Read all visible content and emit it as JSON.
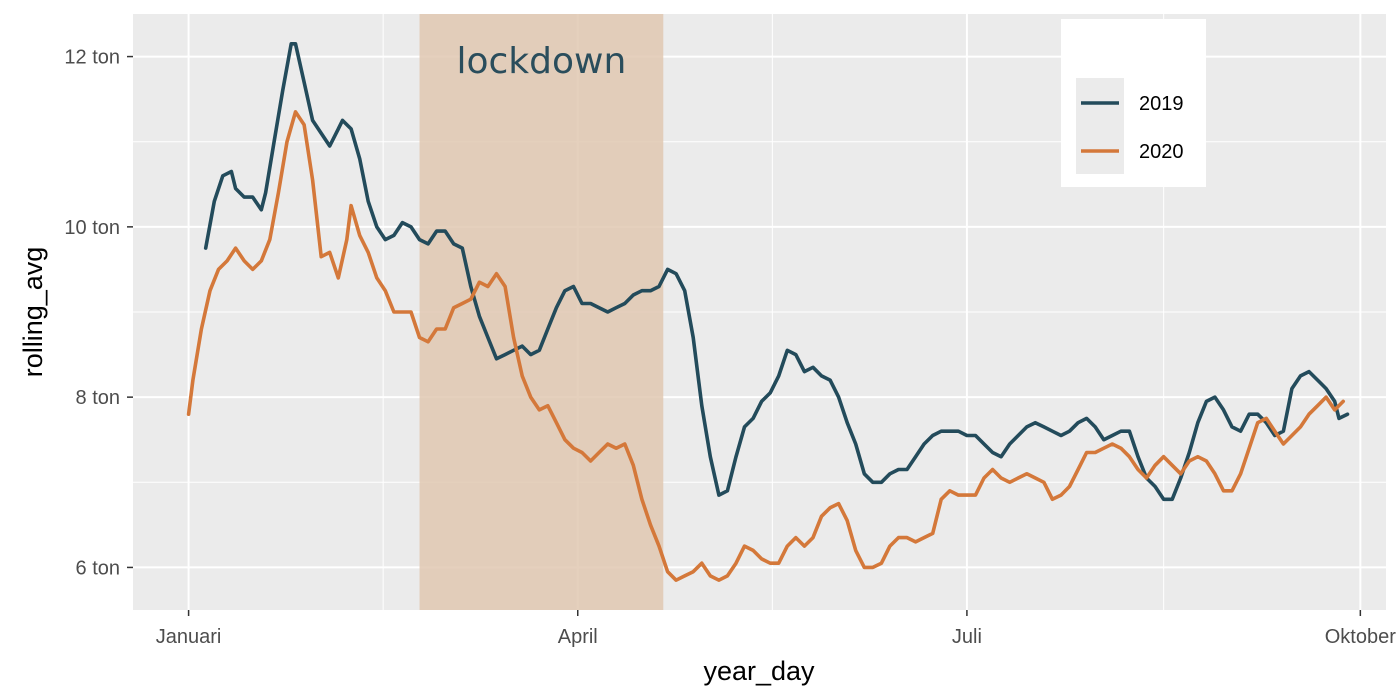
{
  "chart_data": {
    "type": "line",
    "xlabel": "year_day",
    "ylabel": "rolling_avg",
    "x_ticks": [
      {
        "label": "Januari",
        "date": "2020-01-01"
      },
      {
        "label": "April",
        "date": "2020-04-01"
      },
      {
        "label": "Juli",
        "date": "2020-07-01"
      },
      {
        "label": "Oktober",
        "date": "2020-10-01"
      }
    ],
    "y_ticks": [
      {
        "label": "6 ton",
        "value": 6
      },
      {
        "label": "8 ton",
        "value": 8
      },
      {
        "label": "10 ton",
        "value": 10
      },
      {
        "label": "12 ton",
        "value": 12
      }
    ],
    "xlim": [
      "2019-12-19",
      "2020-10-07"
    ],
    "ylim": [
      5.5,
      12.5
    ],
    "grid": true,
    "legend_position": "top-right",
    "annotation": {
      "label": "lockdown",
      "start": "2020-02-24",
      "end": "2020-04-21",
      "color": "#e0c8b1",
      "text_color": "#2a4d5c"
    },
    "series": [
      {
        "name": "2019",
        "color": "#234b5b",
        "points": [
          [
            "2020-01-05",
            9.75
          ],
          [
            "2020-01-07",
            10.3
          ],
          [
            "2020-01-09",
            10.6
          ],
          [
            "2020-01-11",
            10.65
          ],
          [
            "2020-01-12",
            10.45
          ],
          [
            "2020-01-14",
            10.35
          ],
          [
            "2020-01-16",
            10.35
          ],
          [
            "2020-01-18",
            10.2
          ],
          [
            "2020-01-19",
            10.4
          ],
          [
            "2020-01-21",
            11.0
          ],
          [
            "2020-01-23",
            11.6
          ],
          [
            "2020-01-25",
            12.15
          ],
          [
            "2020-01-26",
            12.15
          ],
          [
            "2020-01-28",
            11.7
          ],
          [
            "2020-01-30",
            11.25
          ],
          [
            "2020-02-01",
            11.1
          ],
          [
            "2020-02-03",
            10.95
          ],
          [
            "2020-02-05",
            11.15
          ],
          [
            "2020-02-06",
            11.25
          ],
          [
            "2020-02-08",
            11.15
          ],
          [
            "2020-02-10",
            10.8
          ],
          [
            "2020-02-12",
            10.3
          ],
          [
            "2020-02-14",
            10.0
          ],
          [
            "2020-02-16",
            9.85
          ],
          [
            "2020-02-18",
            9.9
          ],
          [
            "2020-02-20",
            10.05
          ],
          [
            "2020-02-22",
            10.0
          ],
          [
            "2020-02-24",
            9.85
          ],
          [
            "2020-02-26",
            9.8
          ],
          [
            "2020-02-28",
            9.95
          ],
          [
            "2020-03-01",
            9.95
          ],
          [
            "2020-03-03",
            9.8
          ],
          [
            "2020-03-05",
            9.75
          ],
          [
            "2020-03-07",
            9.3
          ],
          [
            "2020-03-09",
            8.95
          ],
          [
            "2020-03-11",
            8.7
          ],
          [
            "2020-03-13",
            8.45
          ],
          [
            "2020-03-15",
            8.5
          ],
          [
            "2020-03-17",
            8.55
          ],
          [
            "2020-03-19",
            8.6
          ],
          [
            "2020-03-21",
            8.5
          ],
          [
            "2020-03-23",
            8.55
          ],
          [
            "2020-03-25",
            8.8
          ],
          [
            "2020-03-27",
            9.05
          ],
          [
            "2020-03-29",
            9.25
          ],
          [
            "2020-03-31",
            9.3
          ],
          [
            "2020-04-02",
            9.1
          ],
          [
            "2020-04-04",
            9.1
          ],
          [
            "2020-04-06",
            9.05
          ],
          [
            "2020-04-08",
            9.0
          ],
          [
            "2020-04-10",
            9.05
          ],
          [
            "2020-04-12",
            9.1
          ],
          [
            "2020-04-14",
            9.2
          ],
          [
            "2020-04-16",
            9.25
          ],
          [
            "2020-04-18",
            9.25
          ],
          [
            "2020-04-20",
            9.3
          ],
          [
            "2020-04-22",
            9.5
          ],
          [
            "2020-04-24",
            9.45
          ],
          [
            "2020-04-26",
            9.25
          ],
          [
            "2020-04-28",
            8.7
          ],
          [
            "2020-04-30",
            7.9
          ],
          [
            "2020-05-02",
            7.3
          ],
          [
            "2020-05-04",
            6.85
          ],
          [
            "2020-05-06",
            6.9
          ],
          [
            "2020-05-08",
            7.3
          ],
          [
            "2020-05-10",
            7.65
          ],
          [
            "2020-05-12",
            7.75
          ],
          [
            "2020-05-14",
            7.95
          ],
          [
            "2020-05-16",
            8.05
          ],
          [
            "2020-05-18",
            8.25
          ],
          [
            "2020-05-20",
            8.55
          ],
          [
            "2020-05-22",
            8.5
          ],
          [
            "2020-05-24",
            8.3
          ],
          [
            "2020-05-26",
            8.35
          ],
          [
            "2020-05-28",
            8.25
          ],
          [
            "2020-05-30",
            8.2
          ],
          [
            "2020-06-01",
            8.0
          ],
          [
            "2020-06-03",
            7.7
          ],
          [
            "2020-06-05",
            7.45
          ],
          [
            "2020-06-07",
            7.1
          ],
          [
            "2020-06-09",
            7.0
          ],
          [
            "2020-06-11",
            7.0
          ],
          [
            "2020-06-13",
            7.1
          ],
          [
            "2020-06-15",
            7.15
          ],
          [
            "2020-06-17",
            7.15
          ],
          [
            "2020-06-19",
            7.3
          ],
          [
            "2020-06-21",
            7.45
          ],
          [
            "2020-06-23",
            7.55
          ],
          [
            "2020-06-25",
            7.6
          ],
          [
            "2020-06-27",
            7.6
          ],
          [
            "2020-06-29",
            7.6
          ],
          [
            "2020-07-01",
            7.55
          ],
          [
            "2020-07-03",
            7.55
          ],
          [
            "2020-07-05",
            7.45
          ],
          [
            "2020-07-07",
            7.35
          ],
          [
            "2020-07-09",
            7.3
          ],
          [
            "2020-07-11",
            7.45
          ],
          [
            "2020-07-13",
            7.55
          ],
          [
            "2020-07-15",
            7.65
          ],
          [
            "2020-07-17",
            7.7
          ],
          [
            "2020-07-19",
            7.65
          ],
          [
            "2020-07-21",
            7.6
          ],
          [
            "2020-07-23",
            7.55
          ],
          [
            "2020-07-25",
            7.6
          ],
          [
            "2020-07-27",
            7.7
          ],
          [
            "2020-07-29",
            7.75
          ],
          [
            "2020-07-31",
            7.65
          ],
          [
            "2020-08-02",
            7.5
          ],
          [
            "2020-08-04",
            7.55
          ],
          [
            "2020-08-06",
            7.6
          ],
          [
            "2020-08-08",
            7.6
          ],
          [
            "2020-08-10",
            7.3
          ],
          [
            "2020-08-12",
            7.05
          ],
          [
            "2020-08-14",
            6.95
          ],
          [
            "2020-08-16",
            6.8
          ],
          [
            "2020-08-18",
            6.8
          ],
          [
            "2020-08-20",
            7.05
          ],
          [
            "2020-08-22",
            7.35
          ],
          [
            "2020-08-24",
            7.7
          ],
          [
            "2020-08-26",
            7.95
          ],
          [
            "2020-08-28",
            8.0
          ],
          [
            "2020-08-30",
            7.85
          ],
          [
            "2020-09-01",
            7.65
          ],
          [
            "2020-09-03",
            7.6
          ],
          [
            "2020-09-05",
            7.8
          ],
          [
            "2020-09-07",
            7.8
          ],
          [
            "2020-09-09",
            7.7
          ],
          [
            "2020-09-11",
            7.55
          ],
          [
            "2020-09-13",
            7.6
          ],
          [
            "2020-09-15",
            8.1
          ],
          [
            "2020-09-17",
            8.25
          ],
          [
            "2020-09-19",
            8.3
          ],
          [
            "2020-09-21",
            8.2
          ],
          [
            "2020-09-23",
            8.1
          ],
          [
            "2020-09-25",
            7.95
          ],
          [
            "2020-09-26",
            7.75
          ],
          [
            "2020-09-28",
            7.8
          ]
        ]
      },
      {
        "name": "2020",
        "color": "#d4783a",
        "points": [
          [
            "2020-01-01",
            7.8
          ],
          [
            "2020-01-02",
            8.2
          ],
          [
            "2020-01-04",
            8.8
          ],
          [
            "2020-01-06",
            9.25
          ],
          [
            "2020-01-08",
            9.5
          ],
          [
            "2020-01-10",
            9.6
          ],
          [
            "2020-01-12",
            9.75
          ],
          [
            "2020-01-14",
            9.6
          ],
          [
            "2020-01-16",
            9.5
          ],
          [
            "2020-01-18",
            9.6
          ],
          [
            "2020-01-20",
            9.85
          ],
          [
            "2020-01-22",
            10.4
          ],
          [
            "2020-01-24",
            11.0
          ],
          [
            "2020-01-26",
            11.35
          ],
          [
            "2020-01-28",
            11.2
          ],
          [
            "2020-01-30",
            10.55
          ],
          [
            "2020-02-01",
            9.65
          ],
          [
            "2020-02-03",
            9.7
          ],
          [
            "2020-02-05",
            9.4
          ],
          [
            "2020-02-07",
            9.85
          ],
          [
            "2020-02-08",
            10.25
          ],
          [
            "2020-02-10",
            9.9
          ],
          [
            "2020-02-12",
            9.7
          ],
          [
            "2020-02-14",
            9.4
          ],
          [
            "2020-02-16",
            9.25
          ],
          [
            "2020-02-18",
            9.0
          ],
          [
            "2020-02-20",
            9.0
          ],
          [
            "2020-02-22",
            9.0
          ],
          [
            "2020-02-24",
            8.7
          ],
          [
            "2020-02-26",
            8.65
          ],
          [
            "2020-02-28",
            8.8
          ],
          [
            "2020-03-01",
            8.8
          ],
          [
            "2020-03-03",
            9.05
          ],
          [
            "2020-03-05",
            9.1
          ],
          [
            "2020-03-07",
            9.15
          ],
          [
            "2020-03-09",
            9.35
          ],
          [
            "2020-03-11",
            9.3
          ],
          [
            "2020-03-13",
            9.45
          ],
          [
            "2020-03-15",
            9.3
          ],
          [
            "2020-03-17",
            8.7
          ],
          [
            "2020-03-19",
            8.25
          ],
          [
            "2020-03-21",
            8.0
          ],
          [
            "2020-03-23",
            7.85
          ],
          [
            "2020-03-25",
            7.9
          ],
          [
            "2020-03-27",
            7.7
          ],
          [
            "2020-03-29",
            7.5
          ],
          [
            "2020-03-31",
            7.4
          ],
          [
            "2020-04-02",
            7.35
          ],
          [
            "2020-04-04",
            7.25
          ],
          [
            "2020-04-06",
            7.35
          ],
          [
            "2020-04-08",
            7.45
          ],
          [
            "2020-04-10",
            7.4
          ],
          [
            "2020-04-12",
            7.45
          ],
          [
            "2020-04-14",
            7.2
          ],
          [
            "2020-04-16",
            6.8
          ],
          [
            "2020-04-18",
            6.5
          ],
          [
            "2020-04-20",
            6.25
          ],
          [
            "2020-04-22",
            5.95
          ],
          [
            "2020-04-24",
            5.85
          ],
          [
            "2020-04-26",
            5.9
          ],
          [
            "2020-04-28",
            5.95
          ],
          [
            "2020-04-30",
            6.05
          ],
          [
            "2020-05-02",
            5.9
          ],
          [
            "2020-05-04",
            5.85
          ],
          [
            "2020-05-06",
            5.9
          ],
          [
            "2020-05-08",
            6.05
          ],
          [
            "2020-05-10",
            6.25
          ],
          [
            "2020-05-12",
            6.2
          ],
          [
            "2020-05-14",
            6.1
          ],
          [
            "2020-05-16",
            6.05
          ],
          [
            "2020-05-18",
            6.05
          ],
          [
            "2020-05-20",
            6.25
          ],
          [
            "2020-05-22",
            6.35
          ],
          [
            "2020-05-24",
            6.25
          ],
          [
            "2020-05-26",
            6.35
          ],
          [
            "2020-05-28",
            6.6
          ],
          [
            "2020-05-30",
            6.7
          ],
          [
            "2020-06-01",
            6.75
          ],
          [
            "2020-06-03",
            6.55
          ],
          [
            "2020-06-05",
            6.2
          ],
          [
            "2020-06-07",
            6.0
          ],
          [
            "2020-06-09",
            6.0
          ],
          [
            "2020-06-11",
            6.05
          ],
          [
            "2020-06-13",
            6.25
          ],
          [
            "2020-06-15",
            6.35
          ],
          [
            "2020-06-17",
            6.35
          ],
          [
            "2020-06-19",
            6.3
          ],
          [
            "2020-06-21",
            6.35
          ],
          [
            "2020-06-23",
            6.4
          ],
          [
            "2020-06-25",
            6.8
          ],
          [
            "2020-06-27",
            6.9
          ],
          [
            "2020-06-29",
            6.85
          ],
          [
            "2020-07-01",
            6.85
          ],
          [
            "2020-07-03",
            6.85
          ],
          [
            "2020-07-05",
            7.05
          ],
          [
            "2020-07-07",
            7.15
          ],
          [
            "2020-07-09",
            7.05
          ],
          [
            "2020-07-11",
            7.0
          ],
          [
            "2020-07-13",
            7.05
          ],
          [
            "2020-07-15",
            7.1
          ],
          [
            "2020-07-17",
            7.05
          ],
          [
            "2020-07-19",
            7.0
          ],
          [
            "2020-07-21",
            6.8
          ],
          [
            "2020-07-23",
            6.85
          ],
          [
            "2020-07-25",
            6.95
          ],
          [
            "2020-07-27",
            7.15
          ],
          [
            "2020-07-29",
            7.35
          ],
          [
            "2020-07-31",
            7.35
          ],
          [
            "2020-08-02",
            7.4
          ],
          [
            "2020-08-04",
            7.45
          ],
          [
            "2020-08-06",
            7.4
          ],
          [
            "2020-08-08",
            7.3
          ],
          [
            "2020-08-10",
            7.15
          ],
          [
            "2020-08-12",
            7.05
          ],
          [
            "2020-08-14",
            7.2
          ],
          [
            "2020-08-16",
            7.3
          ],
          [
            "2020-08-18",
            7.2
          ],
          [
            "2020-08-20",
            7.1
          ],
          [
            "2020-08-22",
            7.25
          ],
          [
            "2020-08-24",
            7.3
          ],
          [
            "2020-08-26",
            7.25
          ],
          [
            "2020-08-28",
            7.1
          ],
          [
            "2020-08-30",
            6.9
          ],
          [
            "2020-09-01",
            6.9
          ],
          [
            "2020-09-03",
            7.1
          ],
          [
            "2020-09-05",
            7.4
          ],
          [
            "2020-09-07",
            7.7
          ],
          [
            "2020-09-09",
            7.75
          ],
          [
            "2020-09-11",
            7.6
          ],
          [
            "2020-09-13",
            7.45
          ],
          [
            "2020-09-15",
            7.55
          ],
          [
            "2020-09-17",
            7.65
          ],
          [
            "2020-09-19",
            7.8
          ],
          [
            "2020-09-21",
            7.9
          ],
          [
            "2020-09-23",
            8.0
          ],
          [
            "2020-09-25",
            7.85
          ],
          [
            "2020-09-27",
            7.95
          ]
        ]
      }
    ]
  }
}
